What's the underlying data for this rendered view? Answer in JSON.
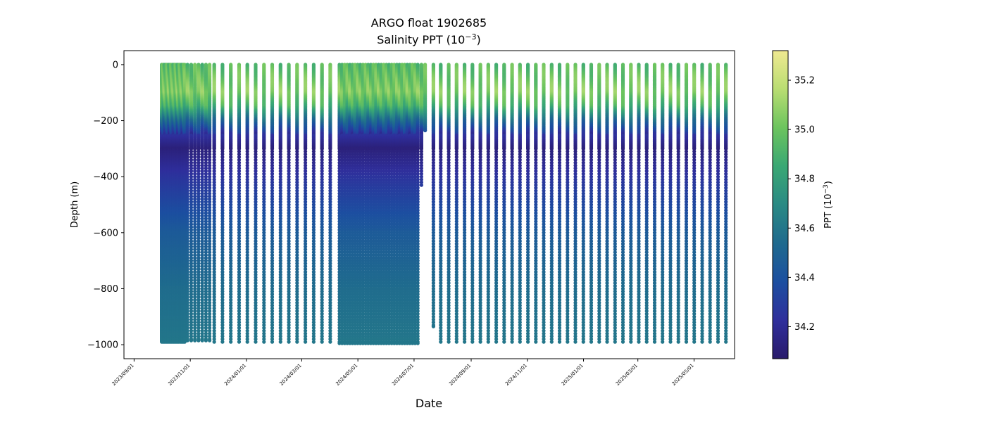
{
  "chart_data": {
    "type": "scatter",
    "title": "ARGO float 1902685",
    "subtitle_base": "Salinity PPT (10",
    "subtitle_exp": "−3",
    "subtitle_close": ")",
    "xlabel": "Date",
    "ylabel": "Depth (m)",
    "xlim": [
      "2023-08-21",
      "2025-06-14"
    ],
    "ylim": [
      -1050,
      50
    ],
    "x_ticks": [
      "2023/09/01",
      "2023/11/01",
      "2024/01/01",
      "2024/03/01",
      "2024/05/01",
      "2024/07/01",
      "2024/09/01",
      "2024/11/01",
      "2025/01/01",
      "2025/03/01",
      "2025/05/01"
    ],
    "y_ticks": [
      0,
      -200,
      -400,
      -600,
      -800,
      -1000
    ],
    "colorbar": {
      "label_base": "PPT (10",
      "label_exp": "−3",
      "label_close": ")",
      "min": 34.07,
      "max": 35.32,
      "ticks": [
        34.2,
        34.4,
        34.6,
        34.8,
        35.0,
        35.2
      ],
      "tick_labels": [
        "34.2",
        "34.4",
        "34.6",
        "34.8",
        "35.0",
        "35.2"
      ],
      "colormap_stops": [
        "#2a1b6b",
        "#2f2f9c",
        "#1c4fa0",
        "#1f6a8e",
        "#2a8a84",
        "#3aa874",
        "#6cc45e",
        "#b9dd72",
        "#f0e991"
      ]
    },
    "profiles_dense": {
      "start_date": "2023-10-01",
      "end_date": "2023-10-26",
      "count": 21,
      "max_depth": -990
    },
    "profiles_weekly_a": {
      "dates": [
        "2023-10-29",
        "2023-11-02",
        "2023-11-06",
        "2023-11-10",
        "2023-11-14",
        "2023-11-18",
        "2023-11-22"
      ],
      "max_depth": -985
    },
    "profiles_regular_1": {
      "start_date": "2023-11-27",
      "interval_days": 9,
      "count": 15,
      "max_depth": -990
    },
    "profiles_dense_b": {
      "start_date": "2024-04-11",
      "end_date": "2024-07-05",
      "count": 31,
      "max_depth": -995
    },
    "profiles_gap": [
      {
        "date": "2024-07-09",
        "max_depth": -430
      },
      {
        "date": "2024-07-13",
        "max_depth": -235
      },
      {
        "date": "2024-07-22",
        "max_depth": -935
      }
    ],
    "profiles_regular_2": {
      "start_date": "2024-07-30",
      "interval_days": 8.6,
      "count": 37,
      "max_depth": -990
    },
    "salinity_profile": {
      "depths": [
        0,
        -50,
        -100,
        -150,
        -200,
        -250,
        -300,
        -400,
        -600,
        -800,
        -1000
      ],
      "values": [
        34.95,
        35.0,
        35.05,
        34.9,
        34.55,
        34.25,
        34.12,
        34.25,
        34.45,
        34.55,
        34.6
      ]
    }
  }
}
